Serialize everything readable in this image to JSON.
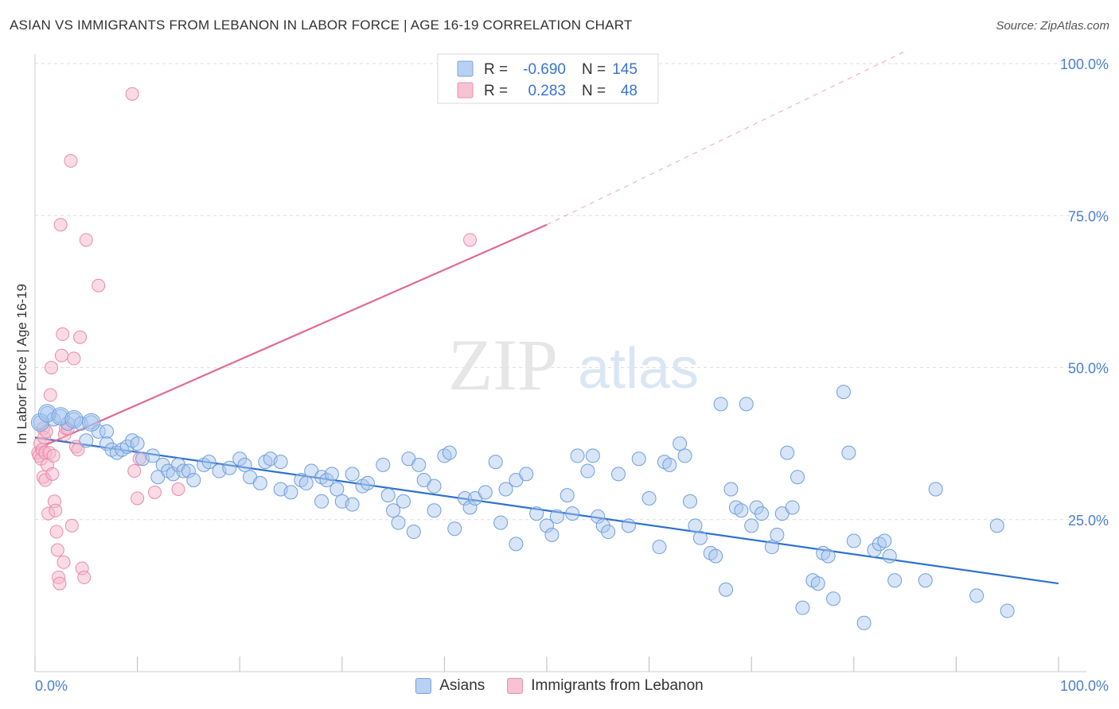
{
  "header": {
    "title": "ASIAN VS IMMIGRANTS FROM LEBANON IN LABOR FORCE | AGE 16-19 CORRELATION CHART",
    "source": "Source: ZipAtlas.com"
  },
  "watermark": {
    "zip": "ZIP",
    "atlas": "atlas"
  },
  "colors": {
    "blue_fill": "#a9c6ee",
    "blue_stroke": "#6f9fdc",
    "blue_line": "#2f72d0",
    "pink_fill": "#f5b8cb",
    "pink_stroke": "#e88aa9",
    "pink_line": "#e06a94",
    "axis_label": "#4a7fd0",
    "grid": "#dddddd"
  },
  "stats_legend": {
    "rows": [
      {
        "r_label": "R =",
        "r_value": "-0.690",
        "n_label": "N =",
        "n_value": "145"
      },
      {
        "r_label": "R =",
        "r_value": "0.283",
        "n_label": "N =",
        "n_value": "48"
      }
    ]
  },
  "legend": {
    "asians": "Asians",
    "lebanon": "Immigrants from Lebanon"
  },
  "chart_data": {
    "type": "scatter",
    "title": "ASIAN VS IMMIGRANTS FROM LEBANON IN LABOR FORCE | AGE 16-19 CORRELATION CHART",
    "xlabel": "",
    "ylabel": "In Labor Force | Age 16-19",
    "xlim": [
      0,
      100
    ],
    "ylim": [
      0,
      105
    ],
    "x_tick_labels": [
      "0.0%",
      "100.0%"
    ],
    "y_tick_labels": [
      "25.0%",
      "50.0%",
      "75.0%",
      "100.0%"
    ],
    "y_ticks": [
      25,
      50,
      75,
      100
    ],
    "grid": true,
    "legend_position": "bottom",
    "series": [
      {
        "name": "Asians",
        "r": -0.69,
        "n": 145,
        "trend": {
          "x0": 0,
          "y0": 38.5,
          "x1": 100,
          "y1": 14.5
        },
        "points": [
          [
            0.5,
            41
          ],
          [
            1.2,
            42.5
          ],
          [
            1.8,
            41.5
          ],
          [
            2.5,
            42
          ],
          [
            3.2,
            40.8
          ],
          [
            3.8,
            41.5
          ],
          [
            4.5,
            40.8
          ],
          [
            5.5,
            41
          ],
          [
            6.2,
            39.5
          ],
          [
            7,
            39.5
          ],
          [
            5,
            38
          ],
          [
            7,
            37.5
          ],
          [
            7.5,
            36.5
          ],
          [
            8,
            36
          ],
          [
            8.5,
            36.5
          ],
          [
            9,
            37
          ],
          [
            9.5,
            38
          ],
          [
            10,
            37.5
          ],
          [
            10.5,
            35
          ],
          [
            11.5,
            35.5
          ],
          [
            12,
            32
          ],
          [
            12.5,
            34
          ],
          [
            13,
            33
          ],
          [
            13.5,
            32.5
          ],
          [
            14,
            34
          ],
          [
            14.5,
            33
          ],
          [
            15,
            33
          ],
          [
            15.5,
            31.5
          ],
          [
            16.5,
            34
          ],
          [
            17,
            34.5
          ],
          [
            18,
            33
          ],
          [
            19,
            33.5
          ],
          [
            20,
            35
          ],
          [
            20.5,
            34
          ],
          [
            21,
            32
          ],
          [
            22,
            31
          ],
          [
            22.5,
            34.5
          ],
          [
            23,
            35
          ],
          [
            24,
            34.5
          ],
          [
            24,
            30
          ],
          [
            25,
            29.5
          ],
          [
            26,
            31.5
          ],
          [
            26.5,
            31
          ],
          [
            27,
            33
          ],
          [
            28,
            32
          ],
          [
            28.5,
            31.5
          ],
          [
            28,
            28
          ],
          [
            29,
            32.5
          ],
          [
            29.5,
            30
          ],
          [
            30,
            28
          ],
          [
            31,
            32.5
          ],
          [
            31,
            27.5
          ],
          [
            32,
            30.5
          ],
          [
            32.5,
            31
          ],
          [
            34,
            34
          ],
          [
            34.5,
            29
          ],
          [
            35,
            26.5
          ],
          [
            35.5,
            24.5
          ],
          [
            36,
            28
          ],
          [
            36.5,
            35
          ],
          [
            37,
            23
          ],
          [
            37.5,
            34
          ],
          [
            38,
            31.5
          ],
          [
            39,
            30.5
          ],
          [
            39,
            26.5
          ],
          [
            40,
            35.5
          ],
          [
            40.5,
            36
          ],
          [
            41,
            23.5
          ],
          [
            42,
            28.5
          ],
          [
            42.5,
            27
          ],
          [
            43,
            28.5
          ],
          [
            44,
            29.5
          ],
          [
            45,
            34.5
          ],
          [
            45.5,
            24.5
          ],
          [
            46,
            30
          ],
          [
            47,
            31.5
          ],
          [
            47,
            21
          ],
          [
            48,
            32.5
          ],
          [
            49,
            26
          ],
          [
            50,
            24
          ],
          [
            50.5,
            22.5
          ],
          [
            51,
            25.5
          ],
          [
            52,
            29
          ],
          [
            52.5,
            26
          ],
          [
            53,
            35.5
          ],
          [
            54,
            33
          ],
          [
            54.5,
            35.5
          ],
          [
            55,
            25.5
          ],
          [
            55.5,
            24
          ],
          [
            56,
            23
          ],
          [
            57,
            32.5
          ],
          [
            58,
            24
          ],
          [
            59,
            35
          ],
          [
            60,
            28.5
          ],
          [
            61,
            20.5
          ],
          [
            61.5,
            34.5
          ],
          [
            62,
            34
          ],
          [
            63,
            37.5
          ],
          [
            63.5,
            35.5
          ],
          [
            64,
            28
          ],
          [
            64.5,
            24
          ],
          [
            65,
            22
          ],
          [
            66,
            19.5
          ],
          [
            66.5,
            19
          ],
          [
            67,
            44
          ],
          [
            67.5,
            13.5
          ],
          [
            68,
            30
          ],
          [
            68.5,
            27
          ],
          [
            69,
            26.5
          ],
          [
            69.5,
            44
          ],
          [
            70,
            24
          ],
          [
            70.5,
            27
          ],
          [
            71,
            26
          ],
          [
            72,
            20.5
          ],
          [
            72.5,
            22.5
          ],
          [
            73,
            26
          ],
          [
            73.5,
            36
          ],
          [
            74,
            27
          ],
          [
            74.5,
            32
          ],
          [
            75,
            10.5
          ],
          [
            76,
            15
          ],
          [
            76.5,
            14.5
          ],
          [
            77,
            19.5
          ],
          [
            77.5,
            19
          ],
          [
            78,
            12
          ],
          [
            79,
            46
          ],
          [
            79.5,
            36
          ],
          [
            80,
            21.5
          ],
          [
            81,
            8
          ],
          [
            82,
            20
          ],
          [
            82.5,
            21
          ],
          [
            83,
            21.5
          ],
          [
            83.5,
            19
          ],
          [
            84,
            15
          ],
          [
            87,
            15
          ],
          [
            88,
            30
          ],
          [
            92,
            12.5
          ],
          [
            94,
            24
          ],
          [
            95,
            10
          ]
        ],
        "big_points": [
          [
            0.5,
            41
          ],
          [
            1.2,
            42.5
          ],
          [
            2.5,
            42
          ],
          [
            3.8,
            41.5
          ],
          [
            5.5,
            41
          ]
        ]
      },
      {
        "name": "Immigrants from Lebanon",
        "r": 0.283,
        "n": 48,
        "trend": {
          "x0": 0,
          "y0": 36.5,
          "x1": 50,
          "y1": 73.5,
          "dash_to_x": 85,
          "dash_to_y": 102
        },
        "points": [
          [
            0.3,
            36
          ],
          [
            0.4,
            35.5
          ],
          [
            0.5,
            37.5
          ],
          [
            0.6,
            35
          ],
          [
            0.7,
            36.5
          ],
          [
            0.8,
            32
          ],
          [
            0.8,
            40
          ],
          [
            0.9,
            38.5
          ],
          [
            1,
            36
          ],
          [
            1,
            31.5
          ],
          [
            1.1,
            39.5
          ],
          [
            1.2,
            34
          ],
          [
            1.3,
            26
          ],
          [
            1.4,
            36
          ],
          [
            1.5,
            45.5
          ],
          [
            1.6,
            50
          ],
          [
            1.7,
            32.5
          ],
          [
            1.8,
            35.5
          ],
          [
            1.9,
            28
          ],
          [
            2,
            26.5
          ],
          [
            2.1,
            23
          ],
          [
            2.2,
            20
          ],
          [
            2.3,
            15.5
          ],
          [
            2.4,
            14.5
          ],
          [
            2.5,
            73.5
          ],
          [
            2.6,
            52
          ],
          [
            2.7,
            55.5
          ],
          [
            2.8,
            18
          ],
          [
            2.9,
            39
          ],
          [
            3,
            40
          ],
          [
            3.2,
            40
          ],
          [
            3.5,
            84
          ],
          [
            3.6,
            24
          ],
          [
            3.8,
            51.5
          ],
          [
            4,
            37
          ],
          [
            4.2,
            36.5
          ],
          [
            4.4,
            55
          ],
          [
            4.6,
            17
          ],
          [
            4.8,
            15.5
          ],
          [
            5,
            71
          ],
          [
            6.2,
            63.5
          ],
          [
            9.5,
            95
          ],
          [
            9.7,
            33
          ],
          [
            10,
            28.5
          ],
          [
            10.2,
            35
          ],
          [
            11.7,
            29.5
          ],
          [
            14,
            30
          ],
          [
            42.5,
            71
          ]
        ]
      }
    ]
  }
}
